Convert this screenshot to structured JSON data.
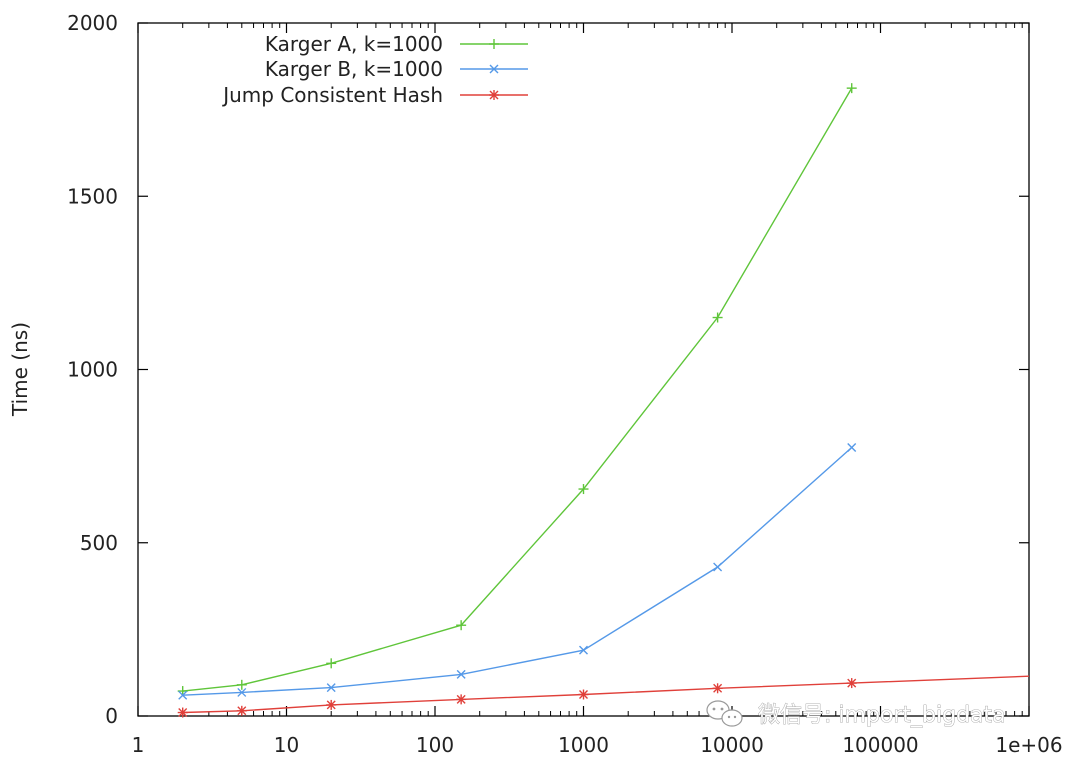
{
  "chart_data": {
    "type": "line",
    "ylabel": "Time (ns)",
    "xlabel": "",
    "xscale": "log",
    "xlim": [
      1,
      1000000
    ],
    "ylim": [
      0,
      2000
    ],
    "x_ticks": [
      1,
      10,
      100,
      1000,
      10000,
      100000,
      1000000
    ],
    "x_tick_labels": [
      "1",
      "10",
      "100",
      "1000",
      "10000",
      "100000",
      "1e+06"
    ],
    "y_ticks": [
      0,
      500,
      1000,
      1500,
      2000
    ],
    "y_tick_labels": [
      "0",
      "500",
      "1000",
      "1500",
      "2000"
    ],
    "grid": false,
    "legend_position": "top-left",
    "series": [
      {
        "name": "Karger A, k=1000",
        "color": "#5fc53a",
        "marker": "plus",
        "x": [
          2,
          5,
          20,
          150,
          1000,
          8000,
          64000
        ],
        "values": [
          72,
          90,
          152,
          262,
          655,
          1150,
          1812
        ]
      },
      {
        "name": "Karger B, k=1000",
        "color": "#5599e8",
        "marker": "cross",
        "x": [
          2,
          5,
          20,
          150,
          1000,
          8000,
          64000
        ],
        "values": [
          60,
          68,
          82,
          120,
          190,
          430,
          775
        ]
      },
      {
        "name": "Jump Consistent Hash",
        "color": "#e0403a",
        "marker": "star",
        "x": [
          2,
          5,
          20,
          150,
          1000,
          8000,
          64000,
          1000000
        ],
        "values": [
          10,
          15,
          32,
          48,
          62,
          80,
          95,
          115
        ],
        "marker_count": 7
      }
    ]
  },
  "watermark": {
    "text": "微信号: import_bigdata",
    "icon": "wechat-icon"
  }
}
